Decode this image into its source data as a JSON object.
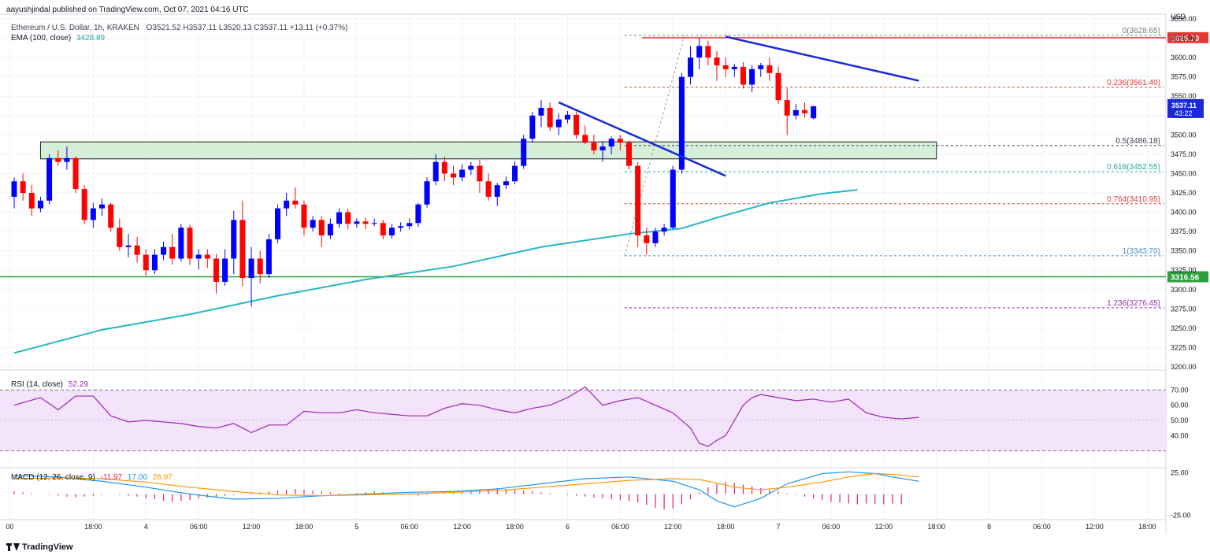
{
  "publisher": "aayushjindal published on TradingView.com, Oct 07, 2021 04:16 UTC",
  "footer_brand": "TradingView",
  "legend": {
    "symbol": "Ethereum / U.S. Dollar, 1h, KRAKEN",
    "open": "O3521.52",
    "high": "H3537.11",
    "low": "L3520.13",
    "close": "C3537.11",
    "change": "+13.11 (+0.37%)",
    "ema_label": "EMA (100, close)",
    "ema_value": "3428.89"
  },
  "rsi_legend": {
    "label": "RSI (14, close)",
    "value": "52.29"
  },
  "macd_legend": {
    "label": "MACD (12, 26, close, 9)",
    "hist": "-11.97",
    "macd": "17.00",
    "signal": "28.97"
  },
  "colors": {
    "up": "#0000ff",
    "down": "#ff0000",
    "ema": "#26b6c6",
    "rsi": "#9c27b0",
    "rsi_band": "#f3e3fb",
    "macd": "#2196f3",
    "signal": "#ff9800",
    "hist": "#e91e63",
    "trendline": "#1a2ad6",
    "support": "#2e9e3e",
    "resistance": "#e53935",
    "zone_fill": "#d6efd9",
    "fib": "#e53935"
  },
  "chart_data": {
    "type": "candlestick",
    "price_axis": {
      "unit": "USD",
      "min": 3200,
      "max": 3650,
      "ticks": [
        "3650.00",
        "3625.00",
        "3600.00",
        "3575.00",
        "3550.00",
        "3525.00",
        "3500.00",
        "3475.00",
        "3450.00",
        "3425.00",
        "3400.00",
        "3375.00",
        "3350.00",
        "3325.00",
        "3300.00",
        "3275.00",
        "3250.00",
        "3225.00",
        "3200.00"
      ]
    },
    "time_axis": {
      "labels": [
        {
          "t": -0.5,
          "text": "00"
        },
        {
          "t": 9,
          "text": "18:00"
        },
        {
          "t": 15,
          "text": "4"
        },
        {
          "t": 21,
          "text": "06:00"
        },
        {
          "t": 27,
          "text": "12:00"
        },
        {
          "t": 33,
          "text": "18:00"
        },
        {
          "t": 39,
          "text": "5"
        },
        {
          "t": 45,
          "text": "06:00"
        },
        {
          "t": 51,
          "text": "12:00"
        },
        {
          "t": 57,
          "text": "18:00"
        },
        {
          "t": 63,
          "text": "6"
        },
        {
          "t": 69,
          "text": "06:00"
        },
        {
          "t": 75,
          "text": "12:00"
        },
        {
          "t": 81,
          "text": "18:00"
        },
        {
          "t": 87,
          "text": "7"
        },
        {
          "t": 93,
          "text": "06:00"
        },
        {
          "t": 99,
          "text": "12:00"
        },
        {
          "t": 105,
          "text": "18:00"
        },
        {
          "t": 111,
          "text": "8"
        },
        {
          "t": 117,
          "text": "06:00"
        },
        {
          "t": 123,
          "text": "12:00"
        },
        {
          "t": 129,
          "text": "18:00"
        }
      ]
    },
    "candles": [
      [
        3420,
        3445,
        3405,
        3440
      ],
      [
        3440,
        3450,
        3415,
        3425
      ],
      [
        3425,
        3435,
        3395,
        3405
      ],
      [
        3405,
        3420,
        3400,
        3415
      ],
      [
        3415,
        3475,
        3410,
        3470
      ],
      [
        3470,
        3480,
        3460,
        3465
      ],
      [
        3465,
        3485,
        3455,
        3470
      ],
      [
        3470,
        3472,
        3425,
        3430
      ],
      [
        3430,
        3435,
        3385,
        3390
      ],
      [
        3390,
        3412,
        3380,
        3405
      ],
      [
        3405,
        3418,
        3395,
        3410
      ],
      [
        3410,
        3412,
        3375,
        3380
      ],
      [
        3380,
        3392,
        3350,
        3355
      ],
      [
        3355,
        3372,
        3342,
        3357
      ],
      [
        3357,
        3368,
        3335,
        3345
      ],
      [
        3345,
        3352,
        3318,
        3325
      ],
      [
        3325,
        3352,
        3320,
        3345
      ],
      [
        3345,
        3362,
        3338,
        3355
      ],
      [
        3355,
        3372,
        3332,
        3340
      ],
      [
        3340,
        3385,
        3336,
        3380
      ],
      [
        3380,
        3384,
        3332,
        3340
      ],
      [
        3340,
        3352,
        3326,
        3345
      ],
      [
        3345,
        3352,
        3328,
        3340
      ],
      [
        3340,
        3346,
        3295,
        3310
      ],
      [
        3310,
        3352,
        3305,
        3340
      ],
      [
        3340,
        3402,
        3320,
        3390
      ],
      [
        3390,
        3415,
        3304,
        3315
      ],
      [
        3315,
        3355,
        3278,
        3340
      ],
      [
        3340,
        3350,
        3308,
        3320
      ],
      [
        3320,
        3372,
        3315,
        3365
      ],
      [
        3365,
        3410,
        3360,
        3405
      ],
      [
        3405,
        3425,
        3395,
        3415
      ],
      [
        3415,
        3432,
        3405,
        3410
      ],
      [
        3410,
        3415,
        3370,
        3380
      ],
      [
        3380,
        3395,
        3375,
        3390
      ],
      [
        3390,
        3395,
        3355,
        3370
      ],
      [
        3370,
        3392,
        3365,
        3385
      ],
      [
        3385,
        3405,
        3380,
        3400
      ],
      [
        3400,
        3405,
        3378,
        3385
      ],
      [
        3385,
        3392,
        3380,
        3388
      ],
      [
        3388,
        3393,
        3378,
        3385
      ],
      [
        3385,
        3392,
        3382,
        3386
      ],
      [
        3386,
        3390,
        3365,
        3370
      ],
      [
        3370,
        3385,
        3366,
        3380
      ],
      [
        3380,
        3387,
        3375,
        3382
      ],
      [
        3382,
        3392,
        3378,
        3386
      ],
      [
        3386,
        3412,
        3381,
        3410
      ],
      [
        3410,
        3445,
        3406,
        3440
      ],
      [
        3440,
        3475,
        3435,
        3465
      ],
      [
        3465,
        3472,
        3440,
        3450
      ],
      [
        3450,
        3460,
        3435,
        3445
      ],
      [
        3445,
        3462,
        3440,
        3455
      ],
      [
        3455,
        3465,
        3448,
        3460
      ],
      [
        3460,
        3468,
        3425,
        3440
      ],
      [
        3440,
        3450,
        3415,
        3420
      ],
      [
        3420,
        3438,
        3408,
        3435
      ],
      [
        3435,
        3446,
        3430,
        3440
      ],
      [
        3440,
        3466,
        3436,
        3460
      ],
      [
        3460,
        3500,
        3456,
        3495
      ],
      [
        3495,
        3530,
        3490,
        3525
      ],
      [
        3525,
        3545,
        3510,
        3535
      ],
      [
        3535,
        3542,
        3505,
        3510
      ],
      [
        3510,
        3528,
        3500,
        3520
      ],
      [
        3520,
        3531,
        3515,
        3526
      ],
      [
        3526,
        3530,
        3495,
        3500
      ],
      [
        3500,
        3512,
        3488,
        3490
      ],
      [
        3490,
        3500,
        3475,
        3480
      ],
      [
        3480,
        3492,
        3465,
        3485
      ],
      [
        3485,
        3498,
        3475,
        3495
      ],
      [
        3495,
        3500,
        3480,
        3490
      ],
      [
        3490,
        3493,
        3455,
        3460
      ],
      [
        3460,
        3465,
        3355,
        3370
      ],
      [
        3370,
        3380,
        3345,
        3360
      ],
      [
        3360,
        3380,
        3355,
        3375
      ],
      [
        3375,
        3385,
        3370,
        3380
      ],
      [
        3380,
        3460,
        3378,
        3455
      ],
      [
        3455,
        3580,
        3450,
        3575
      ],
      [
        3575,
        3615,
        3565,
        3600
      ],
      [
        3600,
        3625,
        3585,
        3615
      ],
      [
        3615,
        3622,
        3590,
        3600
      ],
      [
        3600,
        3608,
        3570,
        3590
      ],
      [
        3590,
        3600,
        3575,
        3585
      ],
      [
        3585,
        3592,
        3575,
        3588
      ],
      [
        3588,
        3594,
        3560,
        3565
      ],
      [
        3565,
        3590,
        3555,
        3585
      ],
      [
        3585,
        3593,
        3575,
        3590
      ],
      [
        3590,
        3600,
        3570,
        3580
      ],
      [
        3580,
        3588,
        3540,
        3545
      ],
      [
        3545,
        3560,
        3500,
        3525
      ],
      [
        3525,
        3540,
        3520,
        3532
      ],
      [
        3532,
        3542,
        3522,
        3528
      ],
      [
        3521.52,
        3537.11,
        3520.13,
        3537.11
      ]
    ],
    "ema_100": [
      [
        0,
        3218
      ],
      [
        10,
        3248
      ],
      [
        20,
        3268
      ],
      [
        30,
        3292
      ],
      [
        40,
        3313
      ],
      [
        50,
        3330
      ],
      [
        60,
        3355
      ],
      [
        70,
        3372
      ],
      [
        76,
        3379
      ],
      [
        80,
        3393
      ],
      [
        86,
        3412
      ],
      [
        92,
        3424
      ],
      [
        96,
        3429
      ]
    ],
    "fib_levels": [
      {
        "ratio": "0",
        "price": 3628.65,
        "label": "0(3628.65)",
        "color": "#787b86"
      },
      {
        "ratio": "0.236",
        "price": 3561.4,
        "label": "0.236(3561.40)",
        "color": "#e53935"
      },
      {
        "ratio": "0.5",
        "price": 3486.18,
        "label": "0.5(3486.18)",
        "color": "#3a3e4b"
      },
      {
        "ratio": "0.618",
        "price": 3452.55,
        "label": "0.618(3452.55)",
        "color": "#26a69a"
      },
      {
        "ratio": "0.764",
        "price": 3410.95,
        "label": "0.764(3410.95)",
        "color": "#e53935"
      },
      {
        "ratio": "1",
        "price": 3343.7,
        "label": "1(3343.70)",
        "color": "#4a90c2"
      },
      {
        "ratio": "1.236",
        "price": 3276.45,
        "label": "1.236(3276.45)",
        "color": "#9c27b0"
      }
    ],
    "horizontal_lines": [
      {
        "name": "resistance",
        "price": 3625.7,
        "label": "3625.70",
        "color": "#e53935"
      },
      {
        "name": "support",
        "price": 3316.56,
        "label": "3316.56",
        "color": "#2e9e3e"
      }
    ],
    "support_zone": {
      "from_t": 3,
      "to_t": 105,
      "low": 3469,
      "high": 3491
    },
    "trendlines": [
      {
        "t1": 62,
        "p1": 3542,
        "t2": 81,
        "p2": 3447
      },
      {
        "t1": 81,
        "p1": 3627,
        "t2": 103,
        "p2": 3570
      }
    ],
    "last_price": {
      "value": "3537.11",
      "countdown": "43:22"
    },
    "rsi": {
      "range": [
        20,
        80
      ],
      "ticks": [
        "70.00",
        "60.00",
        "50.00",
        "40.00"
      ],
      "band": [
        30,
        70
      ],
      "values": [
        [
          0,
          60
        ],
        [
          3,
          65
        ],
        [
          5,
          57
        ],
        [
          7,
          66
        ],
        [
          9,
          66
        ],
        [
          11,
          53
        ],
        [
          13,
          49
        ],
        [
          15,
          50
        ],
        [
          17,
          49
        ],
        [
          19,
          48
        ],
        [
          21,
          46
        ],
        [
          23,
          45
        ],
        [
          25,
          48
        ],
        [
          27,
          42
        ],
        [
          29,
          47
        ],
        [
          31,
          47
        ],
        [
          33,
          56
        ],
        [
          35,
          55
        ],
        [
          37,
          55
        ],
        [
          39,
          57
        ],
        [
          41,
          55
        ],
        [
          43,
          54
        ],
        [
          45,
          53
        ],
        [
          47,
          53
        ],
        [
          49,
          58
        ],
        [
          51,
          61
        ],
        [
          53,
          60
        ],
        [
          55,
          57
        ],
        [
          57,
          55
        ],
        [
          59,
          58
        ],
        [
          61,
          60
        ],
        [
          63,
          65
        ],
        [
          65,
          72
        ],
        [
          67,
          60
        ],
        [
          69,
          63
        ],
        [
          71,
          65
        ],
        [
          73,
          60
        ],
        [
          75,
          55
        ],
        [
          77,
          45
        ],
        [
          78,
          35
        ],
        [
          79,
          33
        ],
        [
          80,
          37
        ],
        [
          81,
          40
        ],
        [
          82,
          50
        ],
        [
          83,
          60
        ],
        [
          84,
          65
        ],
        [
          85,
          67
        ],
        [
          87,
          65
        ],
        [
          89,
          63
        ],
        [
          91,
          64
        ],
        [
          93,
          62
        ],
        [
          95,
          64
        ],
        [
          97,
          55
        ],
        [
          99,
          52
        ],
        [
          101,
          51
        ],
        [
          103,
          52
        ]
      ]
    },
    "macd": {
      "range": [
        -30,
        30
      ],
      "ticks": [
        "25.00",
        "-25.00"
      ],
      "macd": [
        [
          0,
          22
        ],
        [
          5,
          20
        ],
        [
          10,
          15
        ],
        [
          15,
          8
        ],
        [
          20,
          0
        ],
        [
          25,
          -6
        ],
        [
          30,
          -5
        ],
        [
          35,
          -2
        ],
        [
          40,
          0
        ],
        [
          45,
          2
        ],
        [
          50,
          3
        ],
        [
          55,
          6
        ],
        [
          60,
          12
        ],
        [
          65,
          18
        ],
        [
          70,
          20
        ],
        [
          75,
          15
        ],
        [
          78,
          5
        ],
        [
          80,
          -8
        ],
        [
          82,
          -15
        ],
        [
          85,
          -5
        ],
        [
          88,
          12
        ],
        [
          92,
          24
        ],
        [
          95,
          26
        ],
        [
          98,
          24
        ],
        [
          100,
          20
        ],
        [
          103,
          15
        ]
      ],
      "signal": [
        [
          0,
          18
        ],
        [
          5,
          19
        ],
        [
          10,
          18
        ],
        [
          15,
          14
        ],
        [
          20,
          8
        ],
        [
          25,
          3
        ],
        [
          30,
          -1
        ],
        [
          35,
          -2
        ],
        [
          40,
          -1
        ],
        [
          45,
          0
        ],
        [
          50,
          2
        ],
        [
          55,
          4
        ],
        [
          60,
          8
        ],
        [
          65,
          12
        ],
        [
          70,
          16
        ],
        [
          75,
          18
        ],
        [
          78,
          17
        ],
        [
          80,
          13
        ],
        [
          82,
          8
        ],
        [
          85,
          5
        ],
        [
          88,
          8
        ],
        [
          92,
          14
        ],
        [
          95,
          20
        ],
        [
          98,
          24
        ],
        [
          100,
          23
        ],
        [
          103,
          20
        ]
      ],
      "hist": [
        3,
        2,
        1,
        0,
        -1,
        -2,
        -3,
        -4,
        -3,
        -2,
        -1,
        0,
        -1,
        -2,
        -3,
        -5,
        -6,
        -8,
        -9,
        -8,
        -7,
        -5,
        -4,
        -3,
        -2,
        -1,
        0,
        1,
        2,
        3,
        4,
        5,
        6,
        5,
        4,
        3,
        2,
        1,
        0,
        1,
        2,
        3,
        2,
        1,
        0,
        -1,
        -2,
        -1,
        0,
        1,
        2,
        3,
        4,
        5,
        6,
        7,
        6,
        5,
        4,
        3,
        2,
        1,
        0,
        -1,
        -2,
        -3,
        -4,
        -5,
        -6,
        -7,
        -8,
        -10,
        -13,
        -16,
        -18,
        -17,
        -12,
        -6,
        2,
        8,
        12,
        14,
        13,
        11,
        9,
        7,
        5,
        3,
        1,
        -1,
        -3,
        -5,
        -7,
        -9,
        -10,
        -11,
        -12,
        -11,
        -12,
        -12,
        -11,
        -12
      ]
    }
  }
}
